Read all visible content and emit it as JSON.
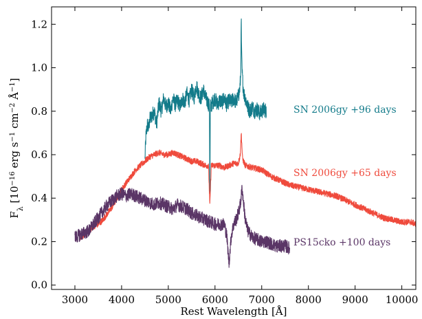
{
  "chart_data": {
    "type": "line",
    "xlabel": "Rest Wavelength [Å]",
    "ylabel": "F_λ [10^-16 erg s^-1 cm^-2 Å^-1]",
    "ylabel_parts": {
      "f": "F",
      "lambda": "λ",
      "p1": " [10",
      "e1": "−16",
      "p2": " erg s",
      "e2": "−1",
      "p3": " cm",
      "e3": "−2",
      "p4": " Å",
      "e4": "−1",
      "p5": "]"
    },
    "xlim": [
      2500,
      10300
    ],
    "ylim": [
      -0.02,
      1.28
    ],
    "xticks": [
      3000,
      4000,
      5000,
      6000,
      7000,
      8000,
      9000,
      10000
    ],
    "xtick_labels": [
      "3000",
      "4000",
      "5000",
      "6000",
      "7000",
      "8000",
      "9000",
      "10000"
    ],
    "yticks": [
      0.0,
      0.2,
      0.4,
      0.6,
      0.8,
      1.0,
      1.2
    ],
    "ytick_labels": [
      "0.0",
      "0.2",
      "0.4",
      "0.6",
      "0.8",
      "1.0",
      "1.2"
    ],
    "grid": false,
    "legend": "none",
    "series": [
      {
        "name": "SN 2006gy +96 days",
        "color": "#137b8a",
        "x": [
          4500,
          4520,
          4550,
          4580,
          4600,
          4650,
          4700,
          4750,
          4800,
          4850,
          4900,
          4950,
          5000,
          5050,
          5100,
          5150,
          5200,
          5250,
          5300,
          5350,
          5400,
          5450,
          5500,
          5550,
          5600,
          5650,
          5700,
          5750,
          5800,
          5850,
          5880,
          5890,
          5900,
          5950,
          6000,
          6050,
          6100,
          6150,
          6200,
          6250,
          6300,
          6350,
          6400,
          6450,
          6500,
          6530,
          6550,
          6563,
          6570,
          6580,
          6600,
          6620,
          6650,
          6700,
          6750,
          6800,
          6850,
          6900,
          6950,
          7000,
          7050,
          7100
        ],
        "y": [
          0.58,
          0.68,
          0.74,
          0.72,
          0.76,
          0.78,
          0.8,
          0.74,
          0.84,
          0.8,
          0.86,
          0.82,
          0.84,
          0.8,
          0.86,
          0.83,
          0.85,
          0.82,
          0.86,
          0.84,
          0.88,
          0.85,
          0.9,
          0.86,
          0.92,
          0.88,
          0.86,
          0.9,
          0.86,
          0.84,
          0.82,
          0.37,
          0.82,
          0.84,
          0.86,
          0.83,
          0.85,
          0.84,
          0.86,
          0.83,
          0.85,
          0.84,
          0.86,
          0.84,
          0.87,
          0.9,
          0.96,
          1.23,
          1.05,
          0.98,
          0.92,
          0.88,
          0.86,
          0.82,
          0.8,
          0.82,
          0.8,
          0.81,
          0.79,
          0.8,
          0.81,
          0.8
        ],
        "noise": 0.035
      },
      {
        "name": "SN 2006gy +65 days",
        "color": "#ef4a3c",
        "x": [
          3100,
          3200,
          3300,
          3400,
          3500,
          3600,
          3700,
          3800,
          3900,
          4000,
          4100,
          4200,
          4300,
          4400,
          4500,
          4600,
          4700,
          4800,
          4900,
          5000,
          5100,
          5200,
          5300,
          5400,
          5500,
          5600,
          5700,
          5800,
          5860,
          5890,
          5920,
          6000,
          6100,
          6200,
          6300,
          6400,
          6500,
          6540,
          6563,
          6590,
          6650,
          6800,
          7000,
          7200,
          7400,
          7600,
          7800,
          8000,
          8200,
          8400,
          8600,
          8800,
          9000,
          9200,
          9400,
          9600,
          9800,
          10000,
          10200,
          10300
        ],
        "y": [
          0.22,
          0.23,
          0.25,
          0.27,
          0.28,
          0.3,
          0.33,
          0.36,
          0.4,
          0.44,
          0.47,
          0.5,
          0.53,
          0.55,
          0.57,
          0.59,
          0.6,
          0.61,
          0.6,
          0.6,
          0.61,
          0.6,
          0.59,
          0.58,
          0.57,
          0.57,
          0.56,
          0.55,
          0.55,
          0.37,
          0.55,
          0.55,
          0.55,
          0.54,
          0.55,
          0.56,
          0.56,
          0.6,
          0.7,
          0.58,
          0.55,
          0.54,
          0.53,
          0.5,
          0.48,
          0.46,
          0.45,
          0.44,
          0.43,
          0.42,
          0.41,
          0.39,
          0.37,
          0.35,
          0.33,
          0.31,
          0.3,
          0.29,
          0.29,
          0.28
        ],
        "noise": 0.014
      },
      {
        "name": "PS15cko +100 days",
        "color": "#5a3566",
        "x": [
          3000,
          3100,
          3200,
          3300,
          3400,
          3500,
          3600,
          3700,
          3800,
          3900,
          4000,
          4100,
          4200,
          4300,
          4400,
          4500,
          4600,
          4700,
          4800,
          4900,
          5000,
          5100,
          5200,
          5300,
          5400,
          5500,
          5600,
          5700,
          5800,
          5900,
          6000,
          6100,
          6200,
          6250,
          6300,
          6350,
          6400,
          6450,
          6500,
          6550,
          6580,
          6600,
          6650,
          6700,
          6800,
          6900,
          7000,
          7100,
          7200,
          7300,
          7400,
          7500,
          7600
        ],
        "y": [
          0.22,
          0.23,
          0.24,
          0.25,
          0.28,
          0.31,
          0.34,
          0.37,
          0.39,
          0.41,
          0.42,
          0.41,
          0.42,
          0.41,
          0.4,
          0.39,
          0.38,
          0.37,
          0.38,
          0.37,
          0.36,
          0.35,
          0.37,
          0.36,
          0.35,
          0.33,
          0.32,
          0.31,
          0.3,
          0.29,
          0.28,
          0.28,
          0.28,
          0.23,
          0.1,
          0.23,
          0.28,
          0.3,
          0.33,
          0.38,
          0.45,
          0.4,
          0.3,
          0.25,
          0.22,
          0.21,
          0.2,
          0.2,
          0.19,
          0.18,
          0.18,
          0.18,
          0.17
        ],
        "noise": 0.03
      }
    ],
    "annotations": [
      {
        "text": "SN 2006gy +96 days",
        "color": "#137b8a"
      },
      {
        "text": "SN 2006gy +65 days",
        "color": "#ef4a3c"
      },
      {
        "text": "PS15cko +100 days",
        "color": "#5a3566"
      }
    ]
  }
}
